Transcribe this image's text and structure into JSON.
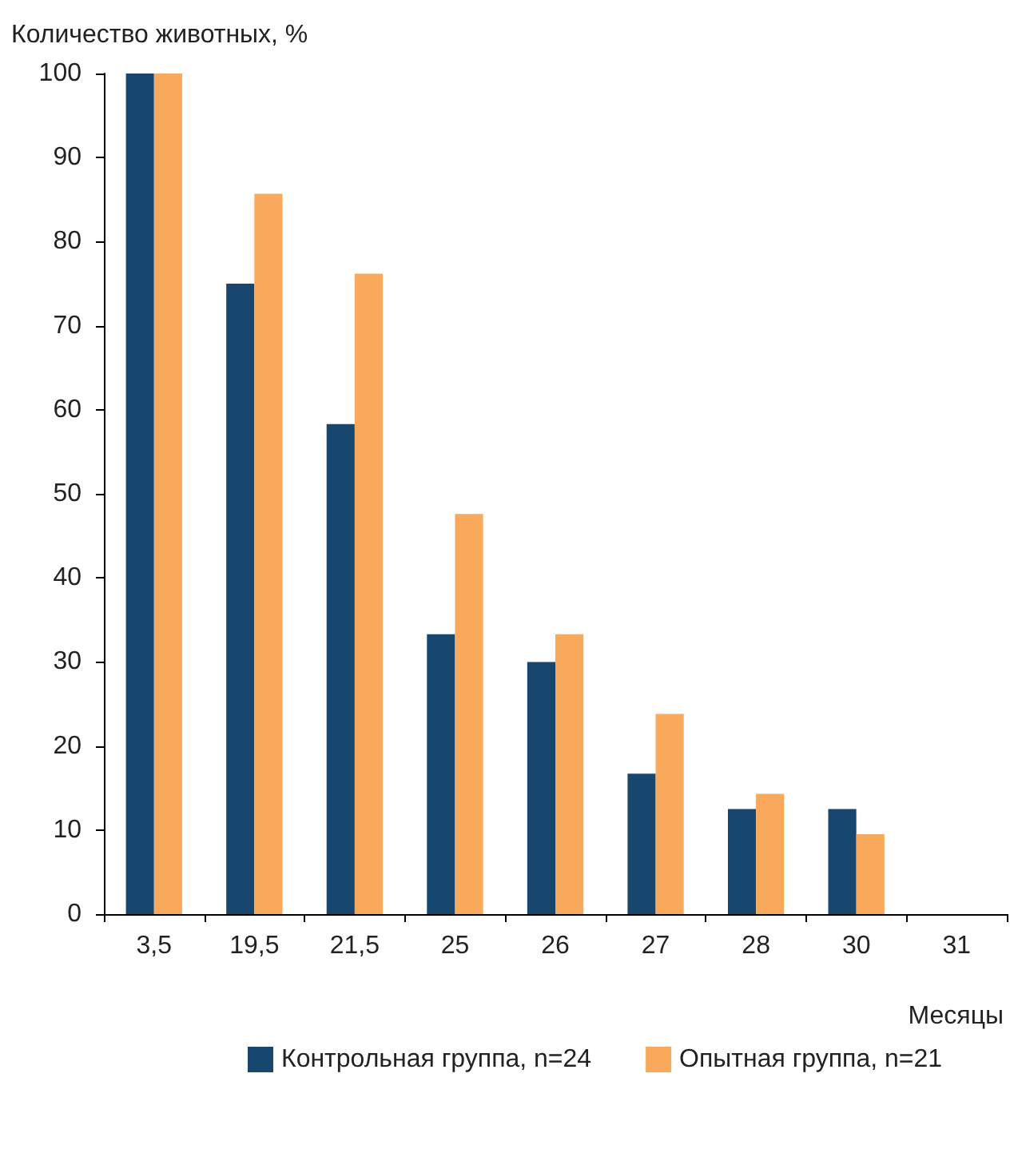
{
  "chart_data": {
    "type": "bar",
    "ylabel": "Количество животных, %",
    "xlabel": "Месяцы",
    "categories": [
      "3,5",
      "19,5",
      "21,5",
      "25",
      "26",
      "27",
      "28",
      "30",
      "31"
    ],
    "series": [
      {
        "name": "Контрольная группа, n=24",
        "color": "#17476f",
        "values": [
          100,
          75,
          58.3,
          33.3,
          30,
          16.7,
          12.5,
          12.5,
          0
        ]
      },
      {
        "name": "Опытная группа, n=21",
        "color": "#f8a95b",
        "values": [
          100,
          85.7,
          76.2,
          47.6,
          33.3,
          23.8,
          14.3,
          9.5,
          0
        ]
      }
    ],
    "ylim": [
      0,
      100
    ],
    "yticks": [
      0,
      10,
      20,
      30,
      40,
      50,
      60,
      70,
      80,
      90,
      100
    ],
    "grid": false,
    "legend": "bottom"
  }
}
